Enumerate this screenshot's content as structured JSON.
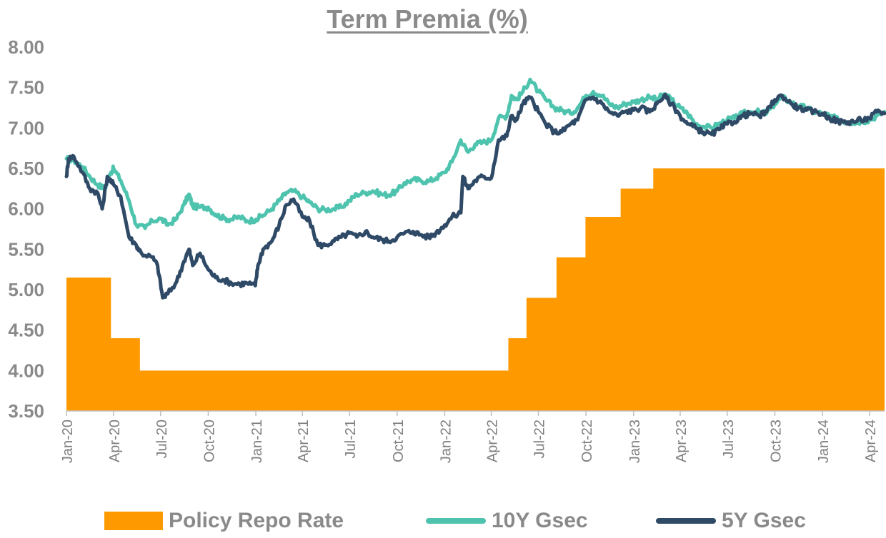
{
  "chart_data": {
    "type": "line",
    "title": "Term Premia (%)",
    "xlabel": "",
    "ylabel": "",
    "ylim": [
      3.5,
      8.0
    ],
    "y_ticks": [
      "3.50",
      "4.00",
      "4.50",
      "5.00",
      "5.50",
      "6.00",
      "6.50",
      "7.00",
      "7.50",
      "8.00"
    ],
    "x_ticks": [
      "Jan-20",
      "Apr-20",
      "Jul-20",
      "Oct-20",
      "Jan-21",
      "Apr-21",
      "Jul-21",
      "Oct-21",
      "Jan-22",
      "Apr-22",
      "Jul-22",
      "Oct-22",
      "Jan-23",
      "Apr-23",
      "Jul-23",
      "Oct-23",
      "Jan-24",
      "Apr-24"
    ],
    "x_range": [
      "2020-01-01",
      "2024-04-30"
    ],
    "grid": false,
    "legend_position": "bottom",
    "series": [
      {
        "name": "Policy Repo Rate",
        "kind": "step-area",
        "color": "#FF9900",
        "points": [
          [
            "2020-01-01",
            5.15
          ],
          [
            "2020-03-27",
            4.4
          ],
          [
            "2020-05-22",
            4.0
          ],
          [
            "2022-05-04",
            4.4
          ],
          [
            "2022-06-08",
            4.9
          ],
          [
            "2022-08-05",
            5.4
          ],
          [
            "2022-09-30",
            5.9
          ],
          [
            "2022-12-07",
            6.25
          ],
          [
            "2023-02-08",
            6.5
          ],
          [
            "2024-04-30",
            6.5
          ]
        ]
      },
      {
        "name": "10Y Gsec",
        "kind": "line",
        "color": "#4EC3AE",
        "points": [
          [
            "2020-01-01",
            6.62
          ],
          [
            "2020-01-15",
            6.6
          ],
          [
            "2020-02-01",
            6.52
          ],
          [
            "2020-02-15",
            6.4
          ],
          [
            "2020-03-01",
            6.3
          ],
          [
            "2020-03-15",
            6.25
          ],
          [
            "2020-03-27",
            6.45
          ],
          [
            "2020-04-01",
            6.5
          ],
          [
            "2020-04-15",
            6.35
          ],
          [
            "2020-05-01",
            6.1
          ],
          [
            "2020-05-15",
            5.8
          ],
          [
            "2020-06-01",
            5.76
          ],
          [
            "2020-06-15",
            5.85
          ],
          [
            "2020-07-01",
            5.88
          ],
          [
            "2020-07-15",
            5.8
          ],
          [
            "2020-08-01",
            5.88
          ],
          [
            "2020-08-15",
            6.05
          ],
          [
            "2020-08-25",
            6.18
          ],
          [
            "2020-09-01",
            6.03
          ],
          [
            "2020-09-15",
            6.02
          ],
          [
            "2020-10-01",
            6.02
          ],
          [
            "2020-10-15",
            5.93
          ],
          [
            "2020-11-01",
            5.88
          ],
          [
            "2020-11-15",
            5.87
          ],
          [
            "2020-12-01",
            5.9
          ],
          [
            "2020-12-15",
            5.85
          ],
          [
            "2021-01-01",
            5.87
          ],
          [
            "2021-01-15",
            5.92
          ],
          [
            "2021-02-01",
            6.0
          ],
          [
            "2021-02-15",
            6.1
          ],
          [
            "2021-03-01",
            6.2
          ],
          [
            "2021-03-15",
            6.22
          ],
          [
            "2021-04-01",
            6.15
          ],
          [
            "2021-04-15",
            6.08
          ],
          [
            "2021-05-01",
            6.0
          ],
          [
            "2021-05-15",
            5.99
          ],
          [
            "2021-06-01",
            6.0
          ],
          [
            "2021-06-15",
            6.02
          ],
          [
            "2021-07-01",
            6.1
          ],
          [
            "2021-07-15",
            6.18
          ],
          [
            "2021-08-01",
            6.2
          ],
          [
            "2021-08-15",
            6.22
          ],
          [
            "2021-09-01",
            6.18
          ],
          [
            "2021-09-15",
            6.17
          ],
          [
            "2021-10-01",
            6.22
          ],
          [
            "2021-10-15",
            6.32
          ],
          [
            "2021-11-01",
            6.36
          ],
          [
            "2021-11-15",
            6.35
          ],
          [
            "2021-12-01",
            6.34
          ],
          [
            "2021-12-15",
            6.38
          ],
          [
            "2022-01-01",
            6.45
          ],
          [
            "2022-01-15",
            6.58
          ],
          [
            "2022-02-01",
            6.85
          ],
          [
            "2022-02-15",
            6.7
          ],
          [
            "2022-03-01",
            6.8
          ],
          [
            "2022-03-15",
            6.82
          ],
          [
            "2022-04-01",
            6.85
          ],
          [
            "2022-04-15",
            7.12
          ],
          [
            "2022-05-01",
            7.15
          ],
          [
            "2022-05-10",
            7.4
          ],
          [
            "2022-05-20",
            7.35
          ],
          [
            "2022-06-01",
            7.45
          ],
          [
            "2022-06-15",
            7.6
          ],
          [
            "2022-07-01",
            7.45
          ],
          [
            "2022-07-15",
            7.35
          ],
          [
            "2022-08-01",
            7.25
          ],
          [
            "2022-08-15",
            7.22
          ],
          [
            "2022-09-01",
            7.18
          ],
          [
            "2022-09-15",
            7.25
          ],
          [
            "2022-10-01",
            7.4
          ],
          [
            "2022-10-15",
            7.45
          ],
          [
            "2022-11-01",
            7.4
          ],
          [
            "2022-11-15",
            7.3
          ],
          [
            "2022-12-01",
            7.25
          ],
          [
            "2022-12-15",
            7.3
          ],
          [
            "2023-01-01",
            7.32
          ],
          [
            "2023-01-15",
            7.35
          ],
          [
            "2023-02-01",
            7.38
          ],
          [
            "2023-02-15",
            7.35
          ],
          [
            "2023-03-01",
            7.42
          ],
          [
            "2023-03-15",
            7.35
          ],
          [
            "2023-04-01",
            7.25
          ],
          [
            "2023-04-15",
            7.18
          ],
          [
            "2023-05-01",
            7.05
          ],
          [
            "2023-05-15",
            7.02
          ],
          [
            "2023-06-01",
            7.0
          ],
          [
            "2023-06-15",
            7.05
          ],
          [
            "2023-07-01",
            7.1
          ],
          [
            "2023-07-15",
            7.12
          ],
          [
            "2023-08-01",
            7.18
          ],
          [
            "2023-08-15",
            7.2
          ],
          [
            "2023-09-01",
            7.2
          ],
          [
            "2023-09-15",
            7.18
          ],
          [
            "2023-10-01",
            7.3
          ],
          [
            "2023-10-15",
            7.38
          ],
          [
            "2023-11-01",
            7.32
          ],
          [
            "2023-11-15",
            7.27
          ],
          [
            "2023-12-01",
            7.25
          ],
          [
            "2023-12-15",
            7.2
          ],
          [
            "2024-01-01",
            7.18
          ],
          [
            "2024-01-15",
            7.15
          ],
          [
            "2024-02-01",
            7.1
          ],
          [
            "2024-02-15",
            7.08
          ],
          [
            "2024-03-01",
            7.07
          ],
          [
            "2024-03-15",
            7.08
          ],
          [
            "2024-04-01",
            7.1
          ],
          [
            "2024-04-15",
            7.15
          ],
          [
            "2024-04-30",
            7.2
          ]
        ]
      },
      {
        "name": "5Y Gsec",
        "kind": "line",
        "color": "#2F4A66",
        "points": [
          [
            "2020-01-01",
            6.4
          ],
          [
            "2020-01-05",
            6.62
          ],
          [
            "2020-01-15",
            6.65
          ],
          [
            "2020-02-01",
            6.45
          ],
          [
            "2020-02-15",
            6.25
          ],
          [
            "2020-03-01",
            6.2
          ],
          [
            "2020-03-10",
            6.0
          ],
          [
            "2020-03-20",
            6.4
          ],
          [
            "2020-04-01",
            6.3
          ],
          [
            "2020-04-15",
            6.15
          ],
          [
            "2020-05-01",
            5.65
          ],
          [
            "2020-05-15",
            5.55
          ],
          [
            "2020-05-25",
            5.45
          ],
          [
            "2020-06-15",
            5.4
          ],
          [
            "2020-06-25",
            5.3
          ],
          [
            "2020-07-05",
            4.9
          ],
          [
            "2020-07-15",
            4.95
          ],
          [
            "2020-08-01",
            5.1
          ],
          [
            "2020-08-15",
            5.35
          ],
          [
            "2020-08-25",
            5.5
          ],
          [
            "2020-09-01",
            5.3
          ],
          [
            "2020-09-15",
            5.45
          ],
          [
            "2020-10-01",
            5.25
          ],
          [
            "2020-10-15",
            5.15
          ],
          [
            "2020-11-01",
            5.12
          ],
          [
            "2020-11-15",
            5.08
          ],
          [
            "2020-12-01",
            5.07
          ],
          [
            "2020-12-15",
            5.08
          ],
          [
            "2020-12-31",
            5.05
          ],
          [
            "2021-01-05",
            5.3
          ],
          [
            "2021-01-15",
            5.5
          ],
          [
            "2021-02-01",
            5.6
          ],
          [
            "2021-02-15",
            5.8
          ],
          [
            "2021-03-01",
            6.05
          ],
          [
            "2021-03-15",
            6.12
          ],
          [
            "2021-04-01",
            5.9
          ],
          [
            "2021-04-15",
            5.85
          ],
          [
            "2021-05-01",
            5.55
          ],
          [
            "2021-05-15",
            5.55
          ],
          [
            "2021-06-01",
            5.6
          ],
          [
            "2021-06-15",
            5.65
          ],
          [
            "2021-07-01",
            5.7
          ],
          [
            "2021-07-15",
            5.65
          ],
          [
            "2021-08-01",
            5.72
          ],
          [
            "2021-08-15",
            5.65
          ],
          [
            "2021-09-01",
            5.62
          ],
          [
            "2021-09-15",
            5.6
          ],
          [
            "2021-10-01",
            5.65
          ],
          [
            "2021-10-15",
            5.7
          ],
          [
            "2021-11-01",
            5.72
          ],
          [
            "2021-11-15",
            5.68
          ],
          [
            "2021-12-01",
            5.65
          ],
          [
            "2021-12-15",
            5.7
          ],
          [
            "2022-01-01",
            5.8
          ],
          [
            "2022-01-15",
            5.9
          ],
          [
            "2022-02-01",
            5.95
          ],
          [
            "2022-02-05",
            6.4
          ],
          [
            "2022-02-15",
            6.25
          ],
          [
            "2022-03-01",
            6.35
          ],
          [
            "2022-03-15",
            6.4
          ],
          [
            "2022-04-01",
            6.38
          ],
          [
            "2022-04-15",
            6.85
          ],
          [
            "2022-05-01",
            6.9
          ],
          [
            "2022-05-10",
            7.15
          ],
          [
            "2022-05-20",
            7.1
          ],
          [
            "2022-06-01",
            7.3
          ],
          [
            "2022-06-15",
            7.38
          ],
          [
            "2022-07-01",
            7.2
          ],
          [
            "2022-07-15",
            7.05
          ],
          [
            "2022-08-01",
            6.95
          ],
          [
            "2022-08-15",
            6.95
          ],
          [
            "2022-09-01",
            7.05
          ],
          [
            "2022-09-15",
            7.1
          ],
          [
            "2022-10-01",
            7.35
          ],
          [
            "2022-10-15",
            7.38
          ],
          [
            "2022-11-01",
            7.3
          ],
          [
            "2022-11-15",
            7.2
          ],
          [
            "2022-12-01",
            7.15
          ],
          [
            "2022-12-15",
            7.2
          ],
          [
            "2023-01-01",
            7.22
          ],
          [
            "2023-01-15",
            7.25
          ],
          [
            "2023-02-01",
            7.2
          ],
          [
            "2023-02-15",
            7.3
          ],
          [
            "2023-03-01",
            7.4
          ],
          [
            "2023-03-15",
            7.3
          ],
          [
            "2023-04-01",
            7.15
          ],
          [
            "2023-04-15",
            7.05
          ],
          [
            "2023-05-01",
            7.0
          ],
          [
            "2023-05-15",
            6.95
          ],
          [
            "2023-06-01",
            6.92
          ],
          [
            "2023-06-15",
            6.98
          ],
          [
            "2023-07-01",
            7.05
          ],
          [
            "2023-07-15",
            7.08
          ],
          [
            "2023-08-01",
            7.15
          ],
          [
            "2023-08-15",
            7.18
          ],
          [
            "2023-09-01",
            7.15
          ],
          [
            "2023-09-15",
            7.2
          ],
          [
            "2023-10-01",
            7.35
          ],
          [
            "2023-10-15",
            7.4
          ],
          [
            "2023-11-01",
            7.3
          ],
          [
            "2023-11-15",
            7.25
          ],
          [
            "2023-12-01",
            7.22
          ],
          [
            "2023-12-15",
            7.2
          ],
          [
            "2024-01-01",
            7.18
          ],
          [
            "2024-01-15",
            7.12
          ],
          [
            "2024-02-01",
            7.08
          ],
          [
            "2024-02-15",
            7.07
          ],
          [
            "2024-03-01",
            7.08
          ],
          [
            "2024-03-15",
            7.1
          ],
          [
            "2024-04-01",
            7.12
          ],
          [
            "2024-04-15",
            7.2
          ],
          [
            "2024-04-30",
            7.18
          ]
        ]
      }
    ]
  }
}
